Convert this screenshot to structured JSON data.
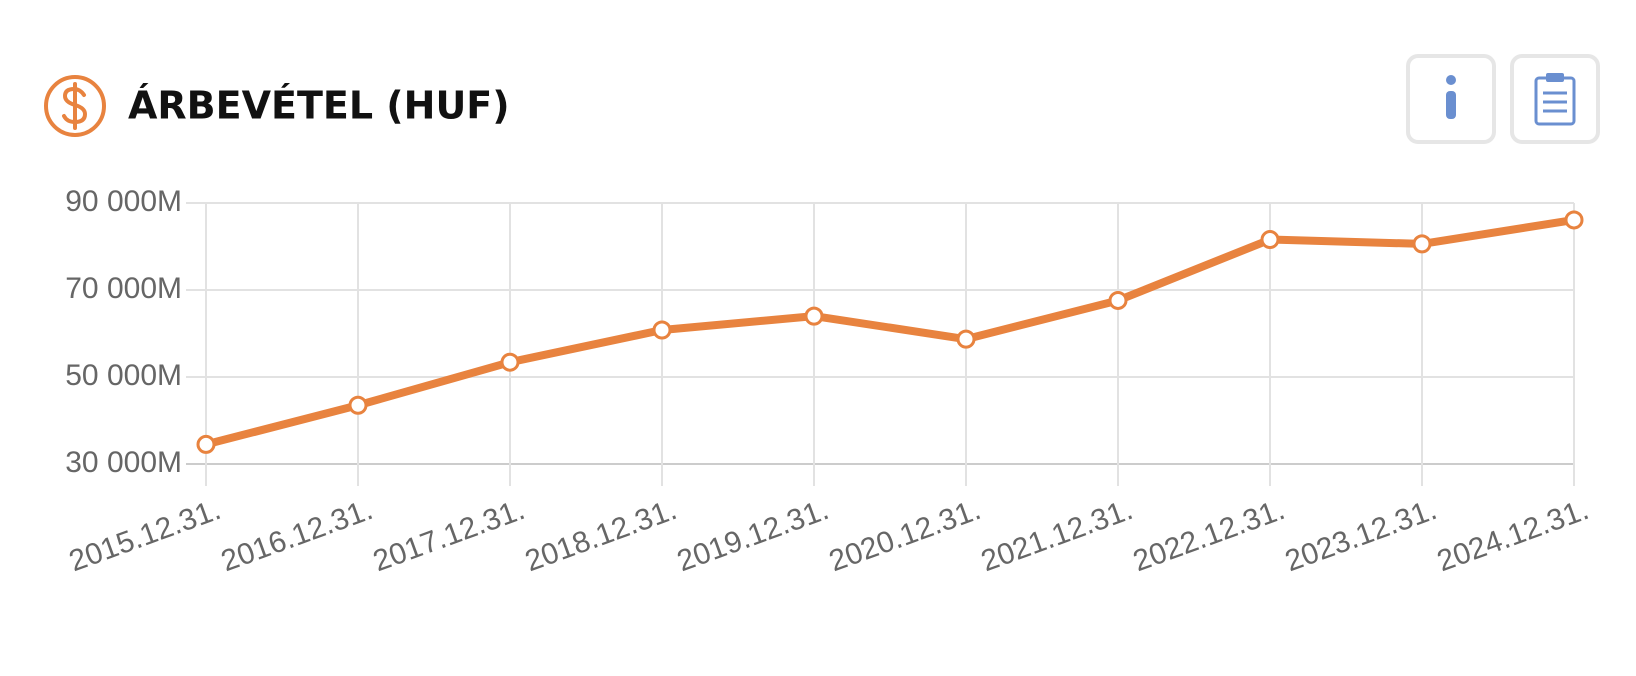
{
  "chart_data": {
    "type": "line",
    "title": "ÁRBEVÉTEL (HUF)",
    "categories": [
      "2015.12.31.",
      "2016.12.31.",
      "2017.12.31.",
      "2018.12.31.",
      "2019.12.31.",
      "2020.12.31.",
      "2021.12.31.",
      "2022.12.31.",
      "2023.12.31.",
      "2024.12.31."
    ],
    "series": [
      {
        "name": "Árbevétel",
        "color": "#e8833f",
        "values": [
          34500,
          43500,
          53400,
          60800,
          64000,
          58700,
          67600,
          81600,
          80600,
          86100
        ]
      }
    ],
    "ylim": [
      30000,
      90000
    ],
    "yticks": [
      {
        "value": 30000,
        "label": "30 000M"
      },
      {
        "value": 50000,
        "label": "50 000M"
      },
      {
        "value": 70000,
        "label": "70 000M"
      },
      {
        "value": 90000,
        "label": "90 000M"
      }
    ],
    "grid": true
  }
}
